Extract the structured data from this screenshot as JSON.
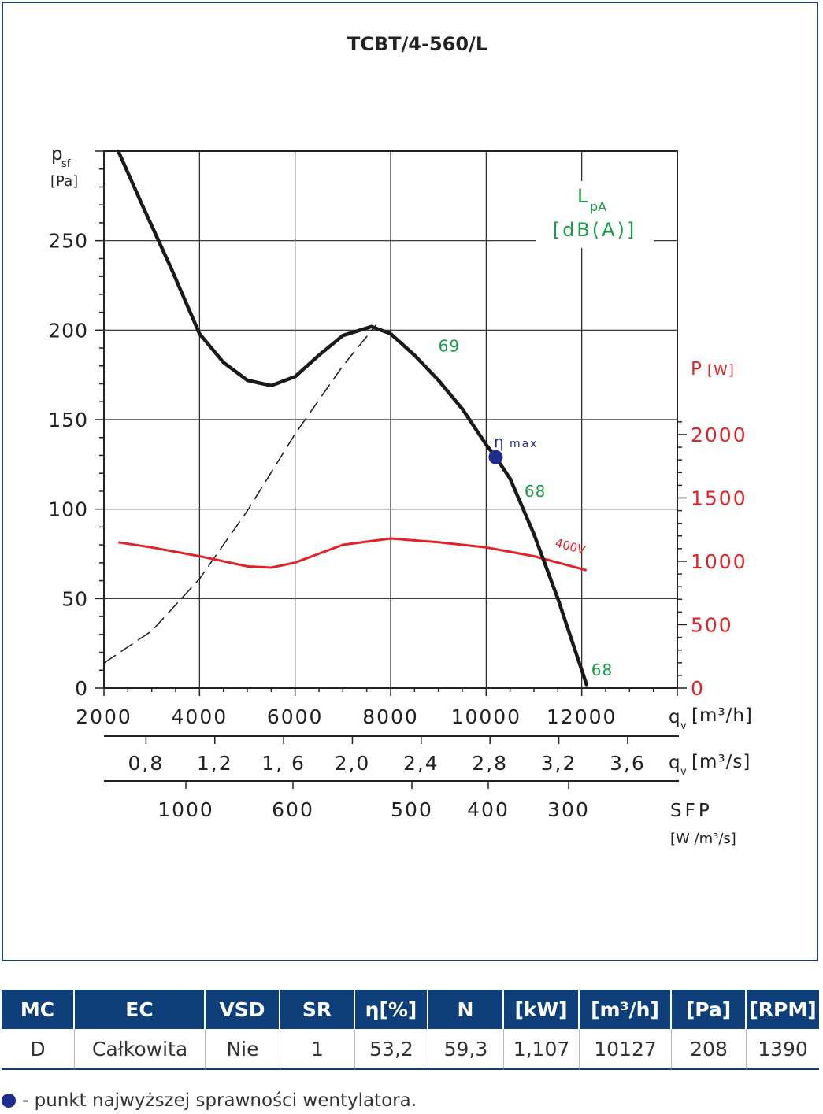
{
  "chart_data": {
    "type": "line",
    "title": "TCBT/4-560/L",
    "x_axes": [
      {
        "label_main": "q",
        "label_sub": "v",
        "unit": "[m³/h]",
        "ticks": [
          "2000",
          "4000",
          "6000",
          "8000",
          "10000",
          "12000"
        ],
        "range": [
          2000,
          14000
        ]
      },
      {
        "label_main": "q",
        "label_sub": "v",
        "unit": "[m³/s]",
        "ticks": [
          "0,8",
          "1,2",
          "1, 6",
          "2,0",
          "2,4",
          "2,8",
          "3,2",
          "3,6"
        ]
      },
      {
        "label": "SFP",
        "unit": "[W /m³/s]",
        "ticks": [
          "1000",
          "600",
          "500",
          "400",
          "300"
        ]
      }
    ],
    "y_left": {
      "label_main": "p",
      "label_sub": "sf",
      "unit": "[Pa]",
      "ticks": [
        "0",
        "50",
        "100",
        "150",
        "200",
        "250"
      ],
      "range": [
        0,
        300
      ]
    },
    "y_right": {
      "label": "P",
      "unit": "[W]",
      "ticks": [
        "0",
        "500",
        "1000",
        "1500",
        "2000"
      ],
      "range": [
        0,
        4000
      ],
      "color": "#e32228"
    },
    "lpa_label": {
      "main": "L",
      "sub": "pA",
      "unit": "[dB(A)]",
      "color": "#1a9a48"
    },
    "series": [
      {
        "key": "pressure",
        "color": "#1a1a1a",
        "x": [
          2300,
          2800,
          3400,
          4000,
          4500,
          5000,
          5500,
          6000,
          6500,
          7000,
          7600,
          8000,
          8500,
          9000,
          9500,
          10000,
          10200,
          10500,
          11000,
          11500,
          12000,
          12100
        ],
        "y": [
          300,
          270,
          235,
          198,
          182,
          172,
          169,
          174,
          186,
          197,
          202,
          198,
          186,
          172,
          156,
          136,
          129,
          117,
          86,
          50,
          10,
          2
        ]
      },
      {
        "key": "power",
        "name": "400V",
        "color": "#e32228",
        "x": [
          2300,
          3000,
          4000,
          5000,
          5500,
          6000,
          7000,
          8000,
          9000,
          10000,
          11000,
          12100
        ],
        "y": [
          1150,
          1110,
          1040,
          960,
          950,
          990,
          1130,
          1180,
          1150,
          1110,
          1040,
          930
        ]
      },
      {
        "key": "system",
        "style": "dashed",
        "color": "#1a1a1a",
        "x": [
          2000,
          3000,
          4000,
          5000,
          6000,
          7000,
          7700
        ],
        "y": [
          14,
          32,
          61,
          99,
          142,
          180,
          203
        ]
      }
    ],
    "lpa_values": [
      {
        "text": "69",
        "x": 9000,
        "y": 188
      },
      {
        "text": "68",
        "x": 10800,
        "y": 107
      },
      {
        "text": "68",
        "x": 12200,
        "y": 7
      }
    ],
    "eta_max": {
      "x": 10200,
      "y": 129,
      "label": "η",
      "sub": "max",
      "color": "#1e2b8f"
    },
    "grid": true
  },
  "table": {
    "headers": [
      "MC",
      "EC",
      "VSD",
      "SR",
      "η[%]",
      "N",
      "[kW]",
      "[m³/h]",
      "[Pa]",
      "[RPM]"
    ],
    "rows": [
      [
        "D",
        "Całkowita",
        "Nie",
        "1",
        "53,2",
        "59,3",
        "1,107",
        "10127",
        "208",
        "1390"
      ]
    ]
  },
  "footnote": "- punkt najwyższej sprawności wentylatora."
}
